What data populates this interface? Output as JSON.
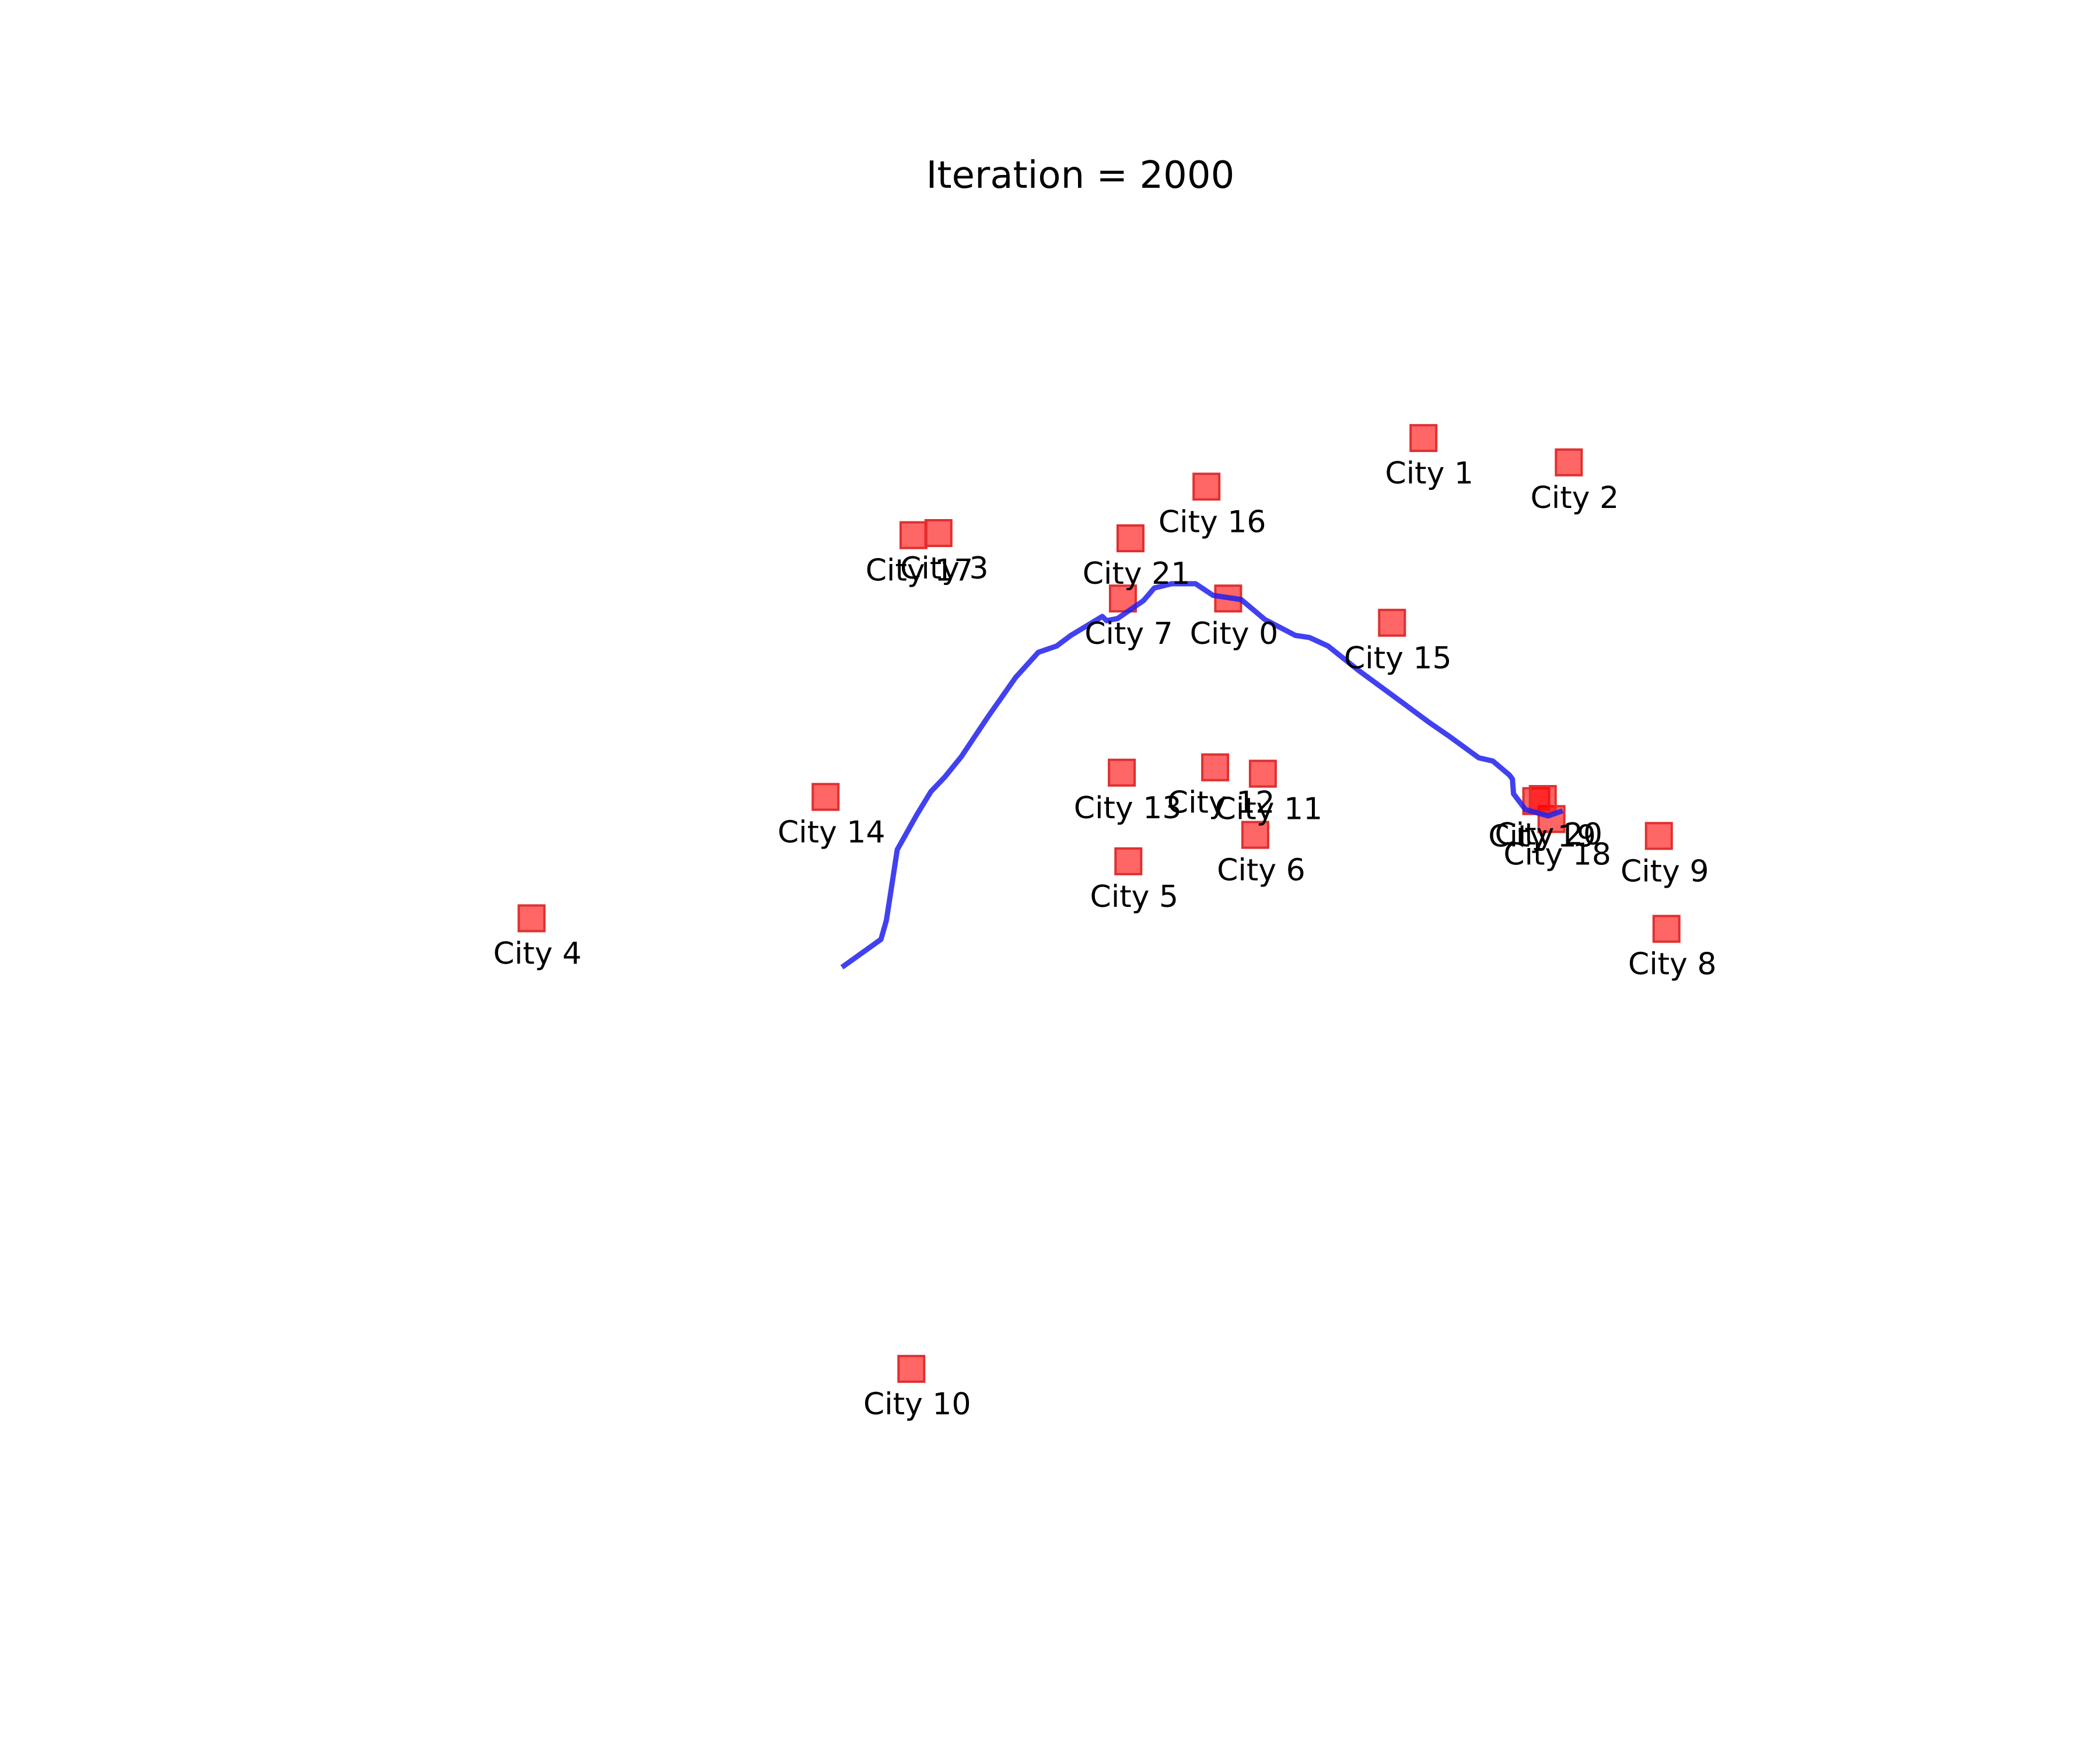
{
  "chart_data": {
    "type": "scatter",
    "title": "Iteration = 2000",
    "xlim": [
      0,
      1500
    ],
    "ylim": [
      0,
      1260
    ],
    "axes_visible": false,
    "grid": false,
    "colors": {
      "city_marker": "#ff0000",
      "city_marker_edge": "#e03030",
      "route_line": "#2020ee",
      "label_text": "#000000"
    },
    "cities": [
      {
        "label": "City 0",
        "x": 890,
        "y": 925
      },
      {
        "label": "City 1",
        "x": 1070,
        "y": 1077
      },
      {
        "label": "City 2",
        "x": 1204,
        "y": 1054
      },
      {
        "label": "City 3",
        "x": 623,
        "y": 987
      },
      {
        "label": "City 4",
        "x": 248,
        "y": 622
      },
      {
        "label": "City 5",
        "x": 798,
        "y": 676
      },
      {
        "label": "City 6",
        "x": 915,
        "y": 701
      },
      {
        "label": "City 7",
        "x": 793,
        "y": 925
      },
      {
        "label": "City 8",
        "x": 1294,
        "y": 612
      },
      {
        "label": "City 9",
        "x": 1287,
        "y": 700
      },
      {
        "label": "City 10",
        "x": 598,
        "y": 195
      },
      {
        "label": "City 11",
        "x": 922,
        "y": 759
      },
      {
        "label": "City 12",
        "x": 878,
        "y": 765
      },
      {
        "label": "City 13",
        "x": 792,
        "y": 760
      },
      {
        "label": "City 14",
        "x": 519,
        "y": 737
      },
      {
        "label": "City 15",
        "x": 1041,
        "y": 902
      },
      {
        "label": "City 16",
        "x": 870,
        "y": 1031
      },
      {
        "label": "City 17",
        "x": 600,
        "y": 985
      },
      {
        "label": "City 18",
        "x": 1188,
        "y": 716
      },
      {
        "label": "City 19",
        "x": 1174,
        "y": 733
      },
      {
        "label": "City 20",
        "x": 1180,
        "y": 735
      },
      {
        "label": "City 21",
        "x": 800,
        "y": 982
      }
    ],
    "route": [
      [
        536,
        577
      ],
      [
        570,
        602
      ],
      [
        575,
        620
      ],
      [
        581,
        660
      ],
      [
        585,
        687
      ],
      [
        603,
        720
      ],
      [
        616,
        742
      ],
      [
        629,
        756
      ],
      [
        644,
        775
      ],
      [
        668,
        812
      ],
      [
        694,
        850
      ],
      [
        715,
        874
      ],
      [
        732,
        880
      ],
      [
        745,
        890
      ],
      [
        774,
        908
      ],
      [
        778,
        904
      ],
      [
        788,
        906
      ],
      [
        812,
        923
      ],
      [
        822,
        935
      ],
      [
        838,
        939
      ],
      [
        860,
        939
      ],
      [
        876,
        928
      ],
      [
        902,
        924
      ],
      [
        924,
        905
      ],
      [
        952,
        890
      ],
      [
        965,
        888
      ],
      [
        982,
        880
      ],
      [
        1010,
        857
      ],
      [
        1051,
        826
      ],
      [
        1076,
        807
      ],
      [
        1093,
        795
      ],
      [
        1121,
        774
      ],
      [
        1134,
        771
      ],
      [
        1149,
        758
      ],
      [
        1152,
        754
      ],
      [
        1153,
        740
      ],
      [
        1164,
        725
      ],
      [
        1185,
        719
      ],
      [
        1196,
        723
      ]
    ]
  }
}
